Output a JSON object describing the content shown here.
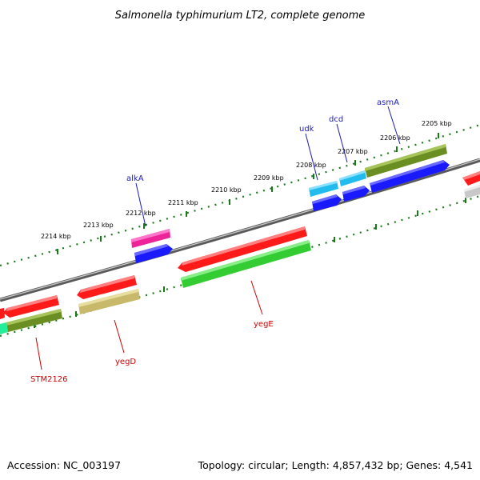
{
  "title": "Salmonella typhimurium LT2, complete genome",
  "footer": {
    "accession": "Accession: NC_003197",
    "topology": "Topology: circular; Length: 4,857,432 bp; Genes: 4,541"
  },
  "kbp_labels": [
    "2214 kbp",
    "2213 kbp",
    "2212 kbp",
    "2211 kbp",
    "2210 kbp",
    "2209 kbp",
    "2208 kbp",
    "2207 kbp",
    "2206 kbp",
    "2205 kbp"
  ],
  "gene_labels": {
    "alkA": "alkA",
    "udk": "udk",
    "dcd": "dcd",
    "asmA": "asmA",
    "STM2126": "STM2126",
    "yegD": "yegD",
    "yegE": "yegE"
  },
  "colors": {
    "red": "#ff1a1a",
    "green": "#33cc33",
    "olive": "#6b8e23",
    "khaki": "#c8b96a",
    "blue": "#1a1aff",
    "cyan": "#22bbee",
    "magenta": "#ee2299",
    "label_blue": "#1a1ab8",
    "label_red": "#cc0000",
    "scale_green": "#1a7a1a"
  }
}
